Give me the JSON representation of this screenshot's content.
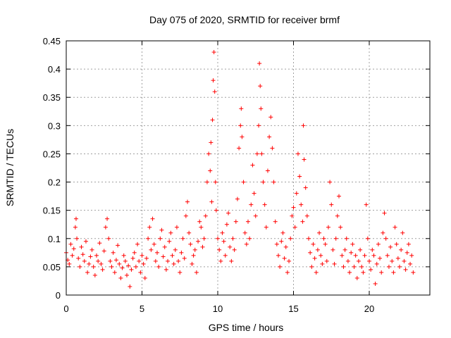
{
  "chart_data": {
    "type": "scatter",
    "title": "Day 075 of 2020, SRMTID for receiver brmf",
    "xlabel": "GPS time / hours",
    "ylabel": "SRMTID / TECUs",
    "xlim": [
      0,
      24
    ],
    "ylim": [
      0,
      0.45
    ],
    "xticks": [
      0,
      5,
      10,
      15,
      20
    ],
    "xtick_labels": [
      "0",
      "5",
      "10",
      "15",
      "20"
    ],
    "yticks": [
      0,
      0.05,
      0.1,
      0.15,
      0.2,
      0.25,
      0.3,
      0.35,
      0.4,
      0.45
    ],
    "ytick_labels": [
      "0",
      "0.05",
      "0.1",
      "0.15",
      "0.2",
      "0.25",
      "0.3",
      "0.35",
      "0.4",
      "0.45"
    ],
    "grid": true,
    "marker": "plus",
    "color": "#ff0000",
    "series": [
      {
        "name": "SRMTID",
        "points": [
          [
            0.0,
            0.075
          ],
          [
            0.1,
            0.062
          ],
          [
            0.2,
            0.055
          ],
          [
            0.3,
            0.09
          ],
          [
            0.4,
            0.07
          ],
          [
            0.5,
            0.082
          ],
          [
            0.6,
            0.12
          ],
          [
            0.65,
            0.135
          ],
          [
            0.7,
            0.1
          ],
          [
            0.8,
            0.065
          ],
          [
            0.9,
            0.05
          ],
          [
            1.0,
            0.085
          ],
          [
            1.1,
            0.072
          ],
          [
            1.2,
            0.06
          ],
          [
            1.3,
            0.095
          ],
          [
            1.4,
            0.04
          ],
          [
            1.5,
            0.055
          ],
          [
            1.6,
            0.068
          ],
          [
            1.7,
            0.08
          ],
          [
            1.8,
            0.05
          ],
          [
            1.9,
            0.035
          ],
          [
            2.0,
            0.07
          ],
          [
            2.1,
            0.06
          ],
          [
            2.2,
            0.092
          ],
          [
            2.3,
            0.055
          ],
          [
            2.4,
            0.045
          ],
          [
            2.5,
            0.078
          ],
          [
            2.6,
            0.12
          ],
          [
            2.7,
            0.135
          ],
          [
            2.8,
            0.1
          ],
          [
            2.9,
            0.06
          ],
          [
            3.0,
            0.05
          ],
          [
            3.1,
            0.075
          ],
          [
            3.2,
            0.04
          ],
          [
            3.3,
            0.062
          ],
          [
            3.4,
            0.088
          ],
          [
            3.5,
            0.055
          ],
          [
            3.6,
            0.03
          ],
          [
            3.7,
            0.048
          ],
          [
            3.8,
            0.07
          ],
          [
            3.9,
            0.06
          ],
          [
            4.0,
            0.035
          ],
          [
            4.1,
            0.052
          ],
          [
            4.2,
            0.015
          ],
          [
            4.3,
            0.045
          ],
          [
            4.4,
            0.065
          ],
          [
            4.5,
            0.075
          ],
          [
            4.6,
            0.05
          ],
          [
            4.7,
            0.09
          ],
          [
            4.8,
            0.06
          ],
          [
            4.9,
            0.04
          ],
          [
            5.0,
            0.07
          ],
          [
            5.1,
            0.055
          ],
          [
            5.2,
            0.03
          ],
          [
            5.3,
            0.065
          ],
          [
            5.4,
            0.1
          ],
          [
            5.5,
            0.12
          ],
          [
            5.6,
            0.08
          ],
          [
            5.7,
            0.135
          ],
          [
            5.8,
            0.09
          ],
          [
            5.9,
            0.06
          ],
          [
            6.0,
            0.075
          ],
          [
            6.1,
            0.05
          ],
          [
            6.2,
            0.1
          ],
          [
            6.3,
            0.115
          ],
          [
            6.4,
            0.068
          ],
          [
            6.5,
            0.085
          ],
          [
            6.6,
            0.045
          ],
          [
            6.7,
            0.06
          ],
          [
            6.8,
            0.095
          ],
          [
            6.9,
            0.11
          ],
          [
            7.0,
            0.07
          ],
          [
            7.1,
            0.055
          ],
          [
            7.2,
            0.08
          ],
          [
            7.3,
            0.12
          ],
          [
            7.4,
            0.06
          ],
          [
            7.5,
            0.04
          ],
          [
            7.6,
            0.075
          ],
          [
            7.7,
            0.1
          ],
          [
            7.8,
            0.065
          ],
          [
            7.9,
            0.14
          ],
          [
            8.0,
            0.165
          ],
          [
            8.1,
            0.11
          ],
          [
            8.2,
            0.09
          ],
          [
            8.3,
            0.055
          ],
          [
            8.4,
            0.07
          ],
          [
            8.5,
            0.08
          ],
          [
            8.6,
            0.04
          ],
          [
            8.7,
            0.095
          ],
          [
            8.8,
            0.13
          ],
          [
            8.9,
            0.12
          ],
          [
            9.0,
            0.085
          ],
          [
            9.1,
            0.1
          ],
          [
            9.2,
            0.14
          ],
          [
            9.3,
            0.2
          ],
          [
            9.4,
            0.25
          ],
          [
            9.5,
            0.22
          ],
          [
            9.55,
            0.27
          ],
          [
            9.6,
            0.165
          ],
          [
            9.65,
            0.31
          ],
          [
            9.7,
            0.38
          ],
          [
            9.75,
            0.43
          ],
          [
            9.8,
            0.36
          ],
          [
            9.85,
            0.2
          ],
          [
            9.9,
            0.15
          ],
          [
            10.0,
            0.1
          ],
          [
            10.1,
            0.08
          ],
          [
            10.2,
            0.06
          ],
          [
            10.3,
            0.11
          ],
          [
            10.4,
            0.095
          ],
          [
            10.5,
            0.07
          ],
          [
            10.6,
            0.125
          ],
          [
            10.7,
            0.145
          ],
          [
            10.8,
            0.085
          ],
          [
            10.9,
            0.06
          ],
          [
            11.0,
            0.1
          ],
          [
            11.1,
            0.08
          ],
          [
            11.2,
            0.13
          ],
          [
            11.3,
            0.17
          ],
          [
            11.4,
            0.26
          ],
          [
            11.5,
            0.3
          ],
          [
            11.55,
            0.33
          ],
          [
            11.6,
            0.28
          ],
          [
            11.7,
            0.2
          ],
          [
            11.8,
            0.11
          ],
          [
            11.9,
            0.09
          ],
          [
            12.0,
            0.13
          ],
          [
            12.1,
            0.1
          ],
          [
            12.2,
            0.16
          ],
          [
            12.3,
            0.23
          ],
          [
            12.4,
            0.18
          ],
          [
            12.5,
            0.14
          ],
          [
            12.6,
            0.25
          ],
          [
            12.7,
            0.3
          ],
          [
            12.75,
            0.41
          ],
          [
            12.8,
            0.37
          ],
          [
            12.85,
            0.33
          ],
          [
            12.9,
            0.25
          ],
          [
            13.0,
            0.2
          ],
          [
            13.1,
            0.16
          ],
          [
            13.2,
            0.12
          ],
          [
            13.3,
            0.22
          ],
          [
            13.4,
            0.28
          ],
          [
            13.5,
            0.315
          ],
          [
            13.6,
            0.26
          ],
          [
            13.7,
            0.2
          ],
          [
            13.8,
            0.13
          ],
          [
            13.9,
            0.09
          ],
          [
            14.0,
            0.07
          ],
          [
            14.1,
            0.05
          ],
          [
            14.2,
            0.095
          ],
          [
            14.3,
            0.11
          ],
          [
            14.4,
            0.065
          ],
          [
            14.5,
            0.085
          ],
          [
            14.6,
            0.04
          ],
          [
            14.7,
            0.06
          ],
          [
            14.8,
            0.1
          ],
          [
            14.9,
            0.14
          ],
          [
            15.0,
            0.155
          ],
          [
            15.1,
            0.12
          ],
          [
            15.2,
            0.18
          ],
          [
            15.3,
            0.25
          ],
          [
            15.4,
            0.21
          ],
          [
            15.5,
            0.16
          ],
          [
            15.6,
            0.13
          ],
          [
            15.65,
            0.3
          ],
          [
            15.7,
            0.24
          ],
          [
            15.8,
            0.19
          ],
          [
            15.9,
            0.14
          ],
          [
            16.0,
            0.1
          ],
          [
            16.1,
            0.075
          ],
          [
            16.2,
            0.05
          ],
          [
            16.3,
            0.09
          ],
          [
            16.4,
            0.065
          ],
          [
            16.5,
            0.04
          ],
          [
            16.6,
            0.08
          ],
          [
            16.7,
            0.11
          ],
          [
            16.8,
            0.07
          ],
          [
            16.9,
            0.055
          ],
          [
            17.0,
            0.1
          ],
          [
            17.1,
            0.09
          ],
          [
            17.2,
            0.06
          ],
          [
            17.3,
            0.12
          ],
          [
            17.4,
            0.2
          ],
          [
            17.5,
            0.16
          ],
          [
            17.6,
            0.08
          ],
          [
            17.7,
            0.055
          ],
          [
            17.8,
            0.1
          ],
          [
            17.9,
            0.14
          ],
          [
            18.0,
            0.175
          ],
          [
            18.1,
            0.12
          ],
          [
            18.2,
            0.07
          ],
          [
            18.3,
            0.05
          ],
          [
            18.4,
            0.08
          ],
          [
            18.5,
            0.1
          ],
          [
            18.6,
            0.06
          ],
          [
            18.7,
            0.04
          ],
          [
            18.8,
            0.075
          ],
          [
            18.9,
            0.09
          ],
          [
            19.0,
            0.05
          ],
          [
            19.1,
            0.07
          ],
          [
            19.2,
            0.03
          ],
          [
            19.3,
            0.06
          ],
          [
            19.4,
            0.08
          ],
          [
            19.5,
            0.05
          ],
          [
            19.6,
            0.04
          ],
          [
            19.7,
            0.07
          ],
          [
            19.8,
            0.16
          ],
          [
            19.9,
            0.1
          ],
          [
            20.0,
            0.06
          ],
          [
            20.1,
            0.045
          ],
          [
            20.2,
            0.08
          ],
          [
            20.3,
            0.07
          ],
          [
            20.4,
            0.02
          ],
          [
            20.5,
            0.055
          ],
          [
            20.6,
            0.09
          ],
          [
            20.7,
            0.065
          ],
          [
            20.8,
            0.04
          ],
          [
            20.9,
            0.11
          ],
          [
            21.0,
            0.145
          ],
          [
            21.1,
            0.1
          ],
          [
            21.2,
            0.07
          ],
          [
            21.3,
            0.05
          ],
          [
            21.4,
            0.085
          ],
          [
            21.5,
            0.06
          ],
          [
            21.6,
            0.04
          ],
          [
            21.7,
            0.12
          ],
          [
            21.8,
            0.09
          ],
          [
            21.9,
            0.065
          ],
          [
            22.0,
            0.05
          ],
          [
            22.1,
            0.08
          ],
          [
            22.2,
            0.11
          ],
          [
            22.3,
            0.06
          ],
          [
            22.4,
            0.045
          ],
          [
            22.5,
            0.075
          ],
          [
            22.6,
            0.09
          ],
          [
            22.7,
            0.055
          ],
          [
            22.8,
            0.07
          ],
          [
            22.9,
            0.04
          ]
        ]
      }
    ]
  }
}
